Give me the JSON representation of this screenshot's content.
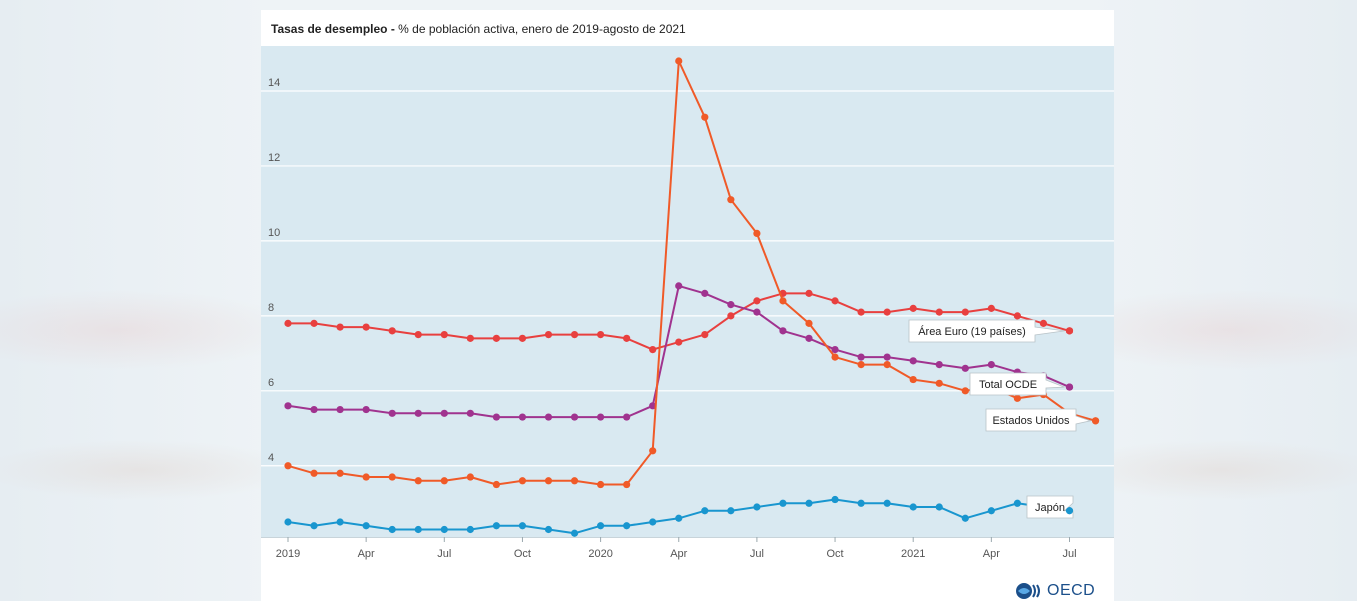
{
  "title": {
    "bold": "Tasas de desempleo -",
    "rest": " % de población activa, enero de 2019-agosto de 2021"
  },
  "logo": {
    "text": "OECD",
    "icon": "oecd-globe-icon"
  },
  "chart_data": {
    "type": "line",
    "title": "Tasas de desempleo - % de población activa, enero de 2019-agosto de 2021",
    "xlabel": "",
    "ylabel": "",
    "ylim": [
      2.1,
      15.2
    ],
    "yticks": [
      4,
      6,
      8,
      10,
      12,
      14
    ],
    "x_tick_labels": [
      "2019",
      "Apr",
      "Jul",
      "Oct",
      "2020",
      "Apr",
      "Jul",
      "Oct",
      "2021",
      "Apr",
      "Jul"
    ],
    "x": [
      "2019-01",
      "2019-02",
      "2019-03",
      "2019-04",
      "2019-05",
      "2019-06",
      "2019-07",
      "2019-08",
      "2019-09",
      "2019-10",
      "2019-11",
      "2019-12",
      "2020-01",
      "2020-02",
      "2020-03",
      "2020-04",
      "2020-05",
      "2020-06",
      "2020-07",
      "2020-08",
      "2020-09",
      "2020-10",
      "2020-11",
      "2020-12",
      "2021-01",
      "2021-02",
      "2021-03",
      "2021-04",
      "2021-05",
      "2021-06",
      "2021-07",
      "2021-08"
    ],
    "grid": true,
    "series": [
      {
        "name": "Área Euro (19 países)",
        "color": "#e8403f",
        "values": [
          7.8,
          7.8,
          7.7,
          7.7,
          7.6,
          7.5,
          7.5,
          7.4,
          7.4,
          7.4,
          7.5,
          7.5,
          7.5,
          7.4,
          7.1,
          7.3,
          7.5,
          8.0,
          8.4,
          8.6,
          8.6,
          8.4,
          8.1,
          8.1,
          8.2,
          8.1,
          8.1,
          8.2,
          8.0,
          7.8,
          7.6,
          null
        ]
      },
      {
        "name": "Total OCDE",
        "color": "#a0338f",
        "values": [
          5.6,
          5.5,
          5.5,
          5.5,
          5.4,
          5.4,
          5.4,
          5.4,
          5.3,
          5.3,
          5.3,
          5.3,
          5.3,
          5.3,
          5.6,
          8.8,
          8.6,
          8.3,
          8.1,
          7.6,
          7.4,
          7.1,
          6.9,
          6.9,
          6.8,
          6.7,
          6.6,
          6.7,
          6.5,
          6.4,
          6.1,
          null
        ]
      },
      {
        "name": "Estados Unidos",
        "color": "#f05a28",
        "values": [
          4.0,
          3.8,
          3.8,
          3.7,
          3.7,
          3.6,
          3.6,
          3.7,
          3.5,
          3.6,
          3.6,
          3.6,
          3.5,
          3.5,
          4.4,
          14.8,
          13.3,
          11.1,
          10.2,
          8.4,
          7.8,
          6.9,
          6.7,
          6.7,
          6.3,
          6.2,
          6.0,
          6.1,
          5.8,
          5.9,
          5.4,
          5.2
        ]
      },
      {
        "name": "Japón",
        "color": "#1996cf",
        "values": [
          2.5,
          2.4,
          2.5,
          2.4,
          2.3,
          2.3,
          2.3,
          2.3,
          2.4,
          2.4,
          2.3,
          2.2,
          2.4,
          2.4,
          2.5,
          2.6,
          2.8,
          2.8,
          2.9,
          3.0,
          3.0,
          3.1,
          3.0,
          3.0,
          2.9,
          2.9,
          2.6,
          2.8,
          3.0,
          2.9,
          2.8,
          null
        ]
      }
    ]
  }
}
